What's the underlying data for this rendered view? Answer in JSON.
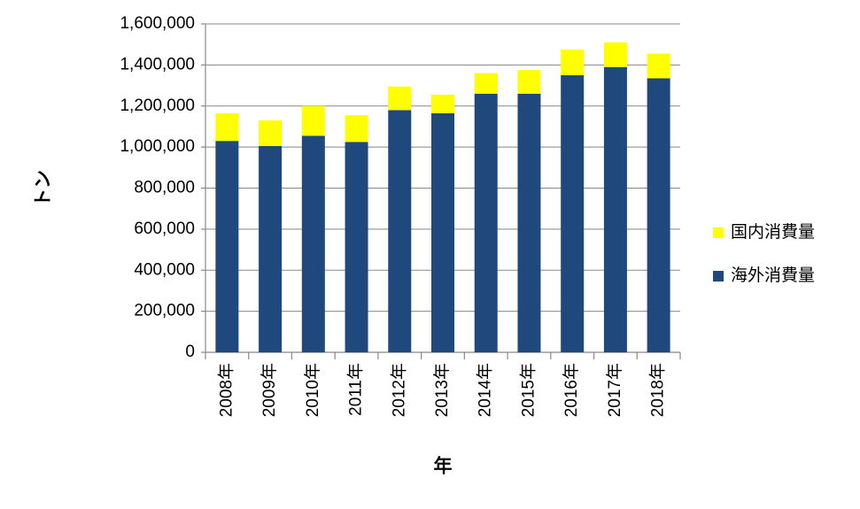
{
  "chart_data": {
    "type": "stacked_bar",
    "y_label": "トン",
    "x_label": "年",
    "categories": [
      "2008年",
      "2009年",
      "2010年",
      "2011年",
      "2012年",
      "2013年",
      "2014年",
      "2015年",
      "2016年",
      "2017年",
      "2018年"
    ],
    "series": [
      {
        "name": "海外消費量",
        "color": "#1f497d",
        "values": [
          1030000,
          1005000,
          1055000,
          1025000,
          1180000,
          1165000,
          1260000,
          1260000,
          1350000,
          1390000,
          1335000
        ]
      },
      {
        "name": "国内消費量",
        "color": "#ffff00",
        "values": [
          135000,
          125000,
          145000,
          130000,
          115000,
          90000,
          100000,
          115000,
          125000,
          120000,
          120000
        ]
      }
    ],
    "ylim": [
      0,
      1600000
    ],
    "yticks": [
      0,
      {
        "value": 200000,
        "label": "200,000"
      },
      {
        "value": 400000,
        "label": "400,000"
      },
      {
        "value": 600000,
        "label": "600,000"
      },
      {
        "value": 800000,
        "label": "800,000"
      },
      {
        "value": 1000000,
        "label": "1,000,000"
      },
      {
        "value": 1200000,
        "label": "1,200,000"
      },
      {
        "value": 1400000,
        "label": "1,400,000"
      },
      {
        "value": 1600000,
        "label": "1,600,000"
      }
    ],
    "grid": true,
    "legend": "right"
  }
}
